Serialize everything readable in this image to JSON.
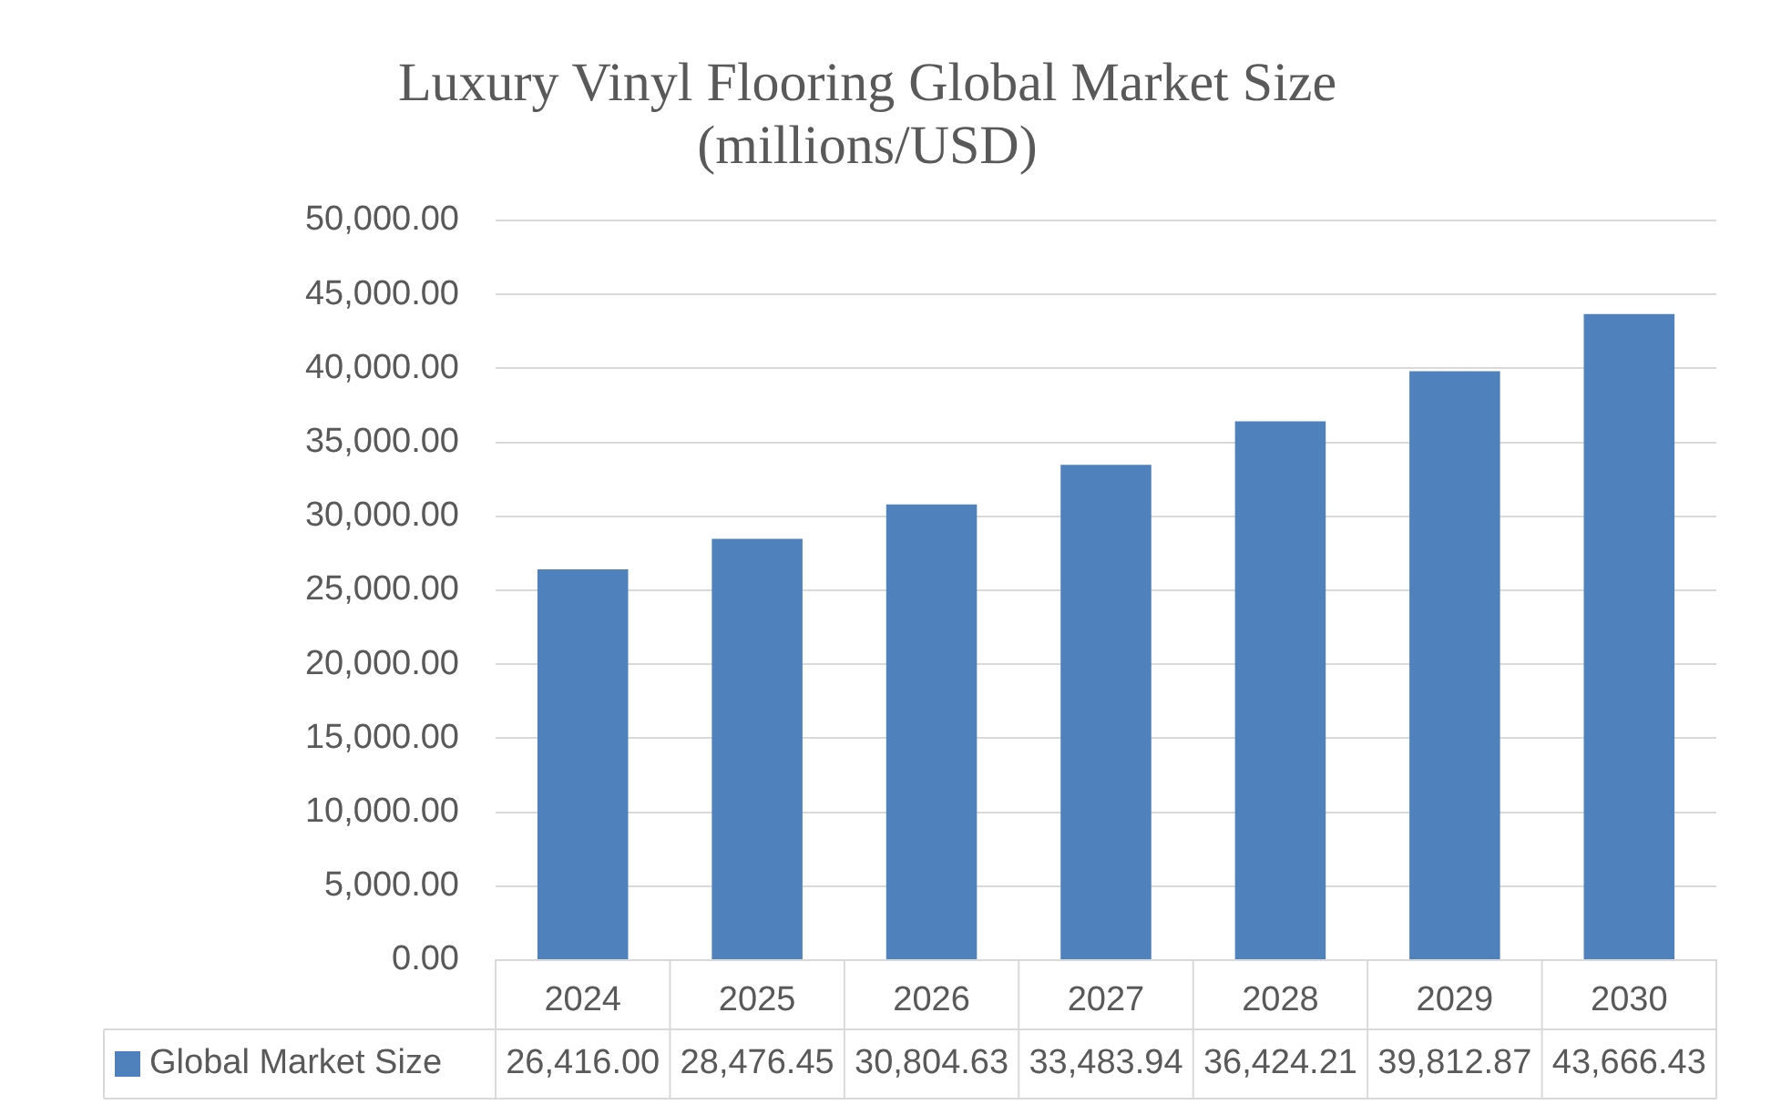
{
  "chart_data": {
    "type": "bar",
    "title": "Luxury Vinyl Flooring Global Market Size\n(millions/USD)",
    "categories": [
      "2024",
      "2025",
      "2026",
      "2027",
      "2028",
      "2029",
      "2030"
    ],
    "series": [
      {
        "name": "Global Market Size",
        "color": "#4f81bd",
        "values": [
          26416.0,
          28476.45,
          30804.63,
          33483.94,
          36424.21,
          39812.87,
          43666.43
        ],
        "value_labels": [
          "26,416.00",
          "28,476.45",
          "30,804.63",
          "33,483.94",
          "36,424.21",
          "39,812.87",
          "43,666.43"
        ]
      }
    ],
    "ylim": [
      0,
      50000
    ],
    "yticks": [
      {
        "value": 0,
        "label": "0.00"
      },
      {
        "value": 5000,
        "label": "5,000.00"
      },
      {
        "value": 10000,
        "label": "10,000.00"
      },
      {
        "value": 15000,
        "label": "15,000.00"
      },
      {
        "value": 20000,
        "label": "20,000.00"
      },
      {
        "value": 25000,
        "label": "25,000.00"
      },
      {
        "value": 30000,
        "label": "30,000.00"
      },
      {
        "value": 35000,
        "label": "35,000.00"
      },
      {
        "value": 40000,
        "label": "40,000.00"
      },
      {
        "value": 45000,
        "label": "45,000.00"
      },
      {
        "value": 50000,
        "label": "50,000.00"
      }
    ],
    "grid": "y",
    "legend": "bottom"
  }
}
